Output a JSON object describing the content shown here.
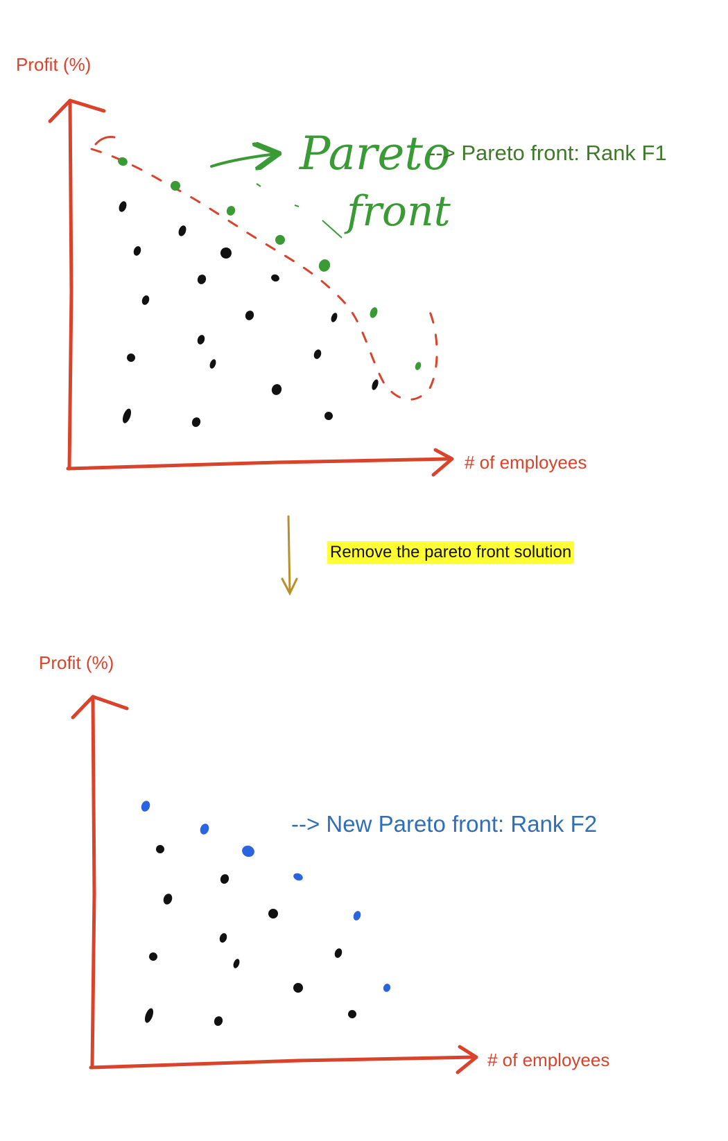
{
  "top_chart": {
    "ylabel": "Profit (%)",
    "xlabel": "# of employees",
    "handwritten_annotation": [
      "Pareto",
      "front"
    ],
    "front_note": "--> Pareto front: Rank F1",
    "colors": {
      "axis": "#d9432b",
      "front": "#3a9a35",
      "dominated": "#111111",
      "boundary": "#d9432b"
    }
  },
  "transition": {
    "label": "Remove the pareto front solution",
    "arrow_color": "#b8902a"
  },
  "bottom_chart": {
    "ylabel": "Profit (%)",
    "xlabel": "# of employees",
    "front_note": "--> New Pareto front: Rank F2",
    "colors": {
      "axis": "#d9432b",
      "front": "#2a64e0",
      "dominated": "#111111"
    }
  }
}
